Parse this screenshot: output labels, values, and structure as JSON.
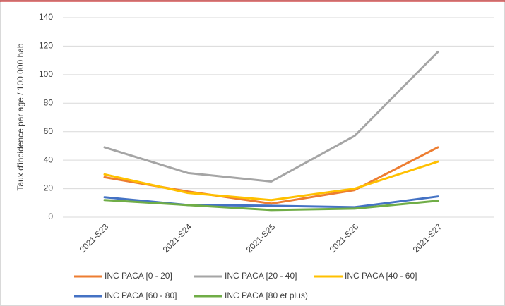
{
  "chart_data": {
    "type": "line",
    "y_label": "Taux d'incidence par age / 100 000 hab",
    "categories": [
      "2021-S23",
      "2021-S24",
      "2021-S25",
      "2021-S26",
      "2021-S27"
    ],
    "series": [
      {
        "name": "INC PACA [0 - 20]",
        "color": "#ed7d31",
        "values": [
          28,
          18,
          9.5,
          19,
          49
        ]
      },
      {
        "name": "INC PACA [20 - 40]",
        "color": "#a5a5a5",
        "values": [
          49,
          31,
          25,
          57,
          116
        ]
      },
      {
        "name": "INC PACA [40 - 60]",
        "color": "#ffc000",
        "values": [
          30,
          17,
          12,
          20,
          39
        ]
      },
      {
        "name": "INC PACA [60 - 80]",
        "color": "#4472c4",
        "values": [
          14,
          8.5,
          8,
          7,
          14.5
        ]
      },
      {
        "name": "INC PACA [80 et plus)",
        "color": "#70ad47",
        "values": [
          12,
          8.5,
          5,
          6,
          11.5
        ]
      }
    ],
    "ylim": [
      0,
      140
    ],
    "yticks": [
      0,
      20,
      40,
      60,
      80,
      100,
      120,
      140
    ],
    "grid": true,
    "legend": "bottom"
  }
}
